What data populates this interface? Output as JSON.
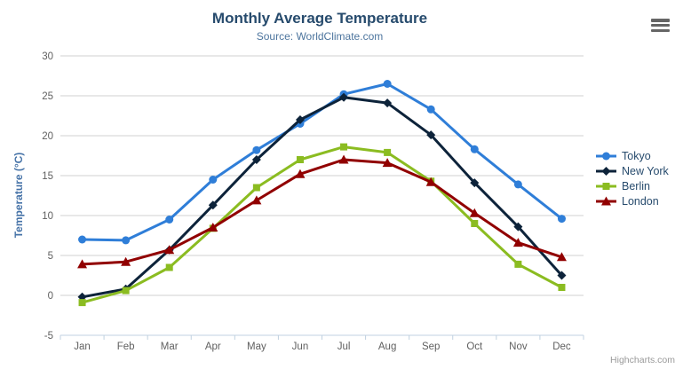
{
  "chart": {
    "title": "Monthly Average Temperature",
    "subtitle": "Source: WorldClimate.com",
    "y_axis_title": "Temperature (°C)",
    "credit": "Highcharts.com",
    "context_menu_icon": "hamburger-icon"
  },
  "chart_data": {
    "type": "line",
    "title": "Monthly Average Temperature",
    "subtitle": "Source: WorldClimate.com",
    "xlabel": "",
    "ylabel": "Temperature (°C)",
    "ylim": [
      -5,
      30
    ],
    "ytick_step": 5,
    "grid": true,
    "legend_position": "right",
    "categories": [
      "Jan",
      "Feb",
      "Mar",
      "Apr",
      "May",
      "Jun",
      "Jul",
      "Aug",
      "Sep",
      "Oct",
      "Nov",
      "Dec"
    ],
    "series": [
      {
        "name": "Tokyo",
        "color": "#2f7ed8",
        "marker": "circle",
        "values": [
          7.0,
          6.9,
          9.5,
          14.5,
          18.2,
          21.5,
          25.2,
          26.5,
          23.3,
          18.3,
          13.9,
          9.6
        ]
      },
      {
        "name": "New York",
        "color": "#0d233a",
        "marker": "diamond",
        "values": [
          -0.2,
          0.8,
          5.7,
          11.3,
          17.0,
          22.0,
          24.8,
          24.1,
          20.1,
          14.1,
          8.6,
          2.5
        ]
      },
      {
        "name": "Berlin",
        "color": "#8bbc21",
        "marker": "square",
        "values": [
          -0.9,
          0.6,
          3.5,
          8.4,
          13.5,
          17.0,
          18.6,
          17.9,
          14.3,
          9.0,
          3.9,
          1.0
        ]
      },
      {
        "name": "London",
        "color": "#910000",
        "marker": "triangle",
        "values": [
          3.9,
          4.2,
          5.7,
          8.5,
          11.9,
          15.2,
          17.0,
          16.6,
          14.2,
          10.3,
          6.6,
          4.8
        ]
      }
    ],
    "colors": {
      "gridline": "#d0d0d0",
      "axis_line": "#c0d0e0",
      "tick_text": "#606060",
      "title_text": "#274b6d",
      "subtitle_text": "#4d759e",
      "axis_title_text": "#4572a7",
      "credit_text": "#999999"
    }
  }
}
